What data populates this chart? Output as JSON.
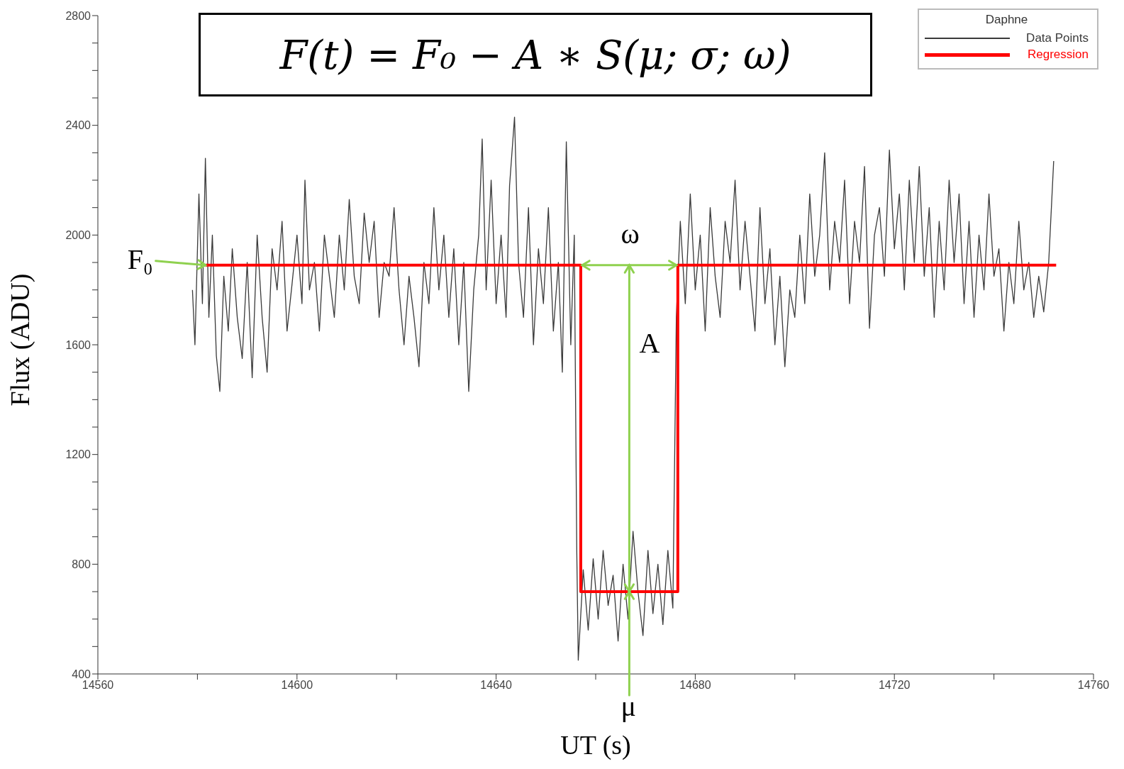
{
  "chart_data": {
    "type": "line",
    "xlabel": "UT (s)",
    "ylabel": "Flux (ADU)",
    "legend_title": "Daphne",
    "legend": "top right",
    "xlim": [
      14560,
      14760
    ],
    "ylim": [
      400,
      2800
    ],
    "xticks": [
      14560,
      {
        "value": 14580,
        "label": null
      },
      14600,
      {
        "value": 14620,
        "label": null
      },
      14640,
      {
        "value": 14660,
        "label": null
      },
      14680,
      {
        "value": 14700,
        "label": null
      },
      14720,
      {
        "value": 14740,
        "label": null
      },
      14760
    ],
    "yticks": [
      400,
      {
        "value": 500,
        "label": null
      },
      {
        "value": 600,
        "label": null
      },
      {
        "value": 700,
        "label": null
      },
      800,
      {
        "value": 900,
        "label": null
      },
      {
        "value": 1000,
        "label": null
      },
      {
        "value": 1100,
        "label": null
      },
      1200,
      {
        "value": 1300,
        "label": null
      },
      {
        "value": 1400,
        "label": null
      },
      {
        "value": 1500,
        "label": null
      },
      1600,
      {
        "value": 1700,
        "label": null
      },
      {
        "value": 1800,
        "label": null
      },
      {
        "value": 1900,
        "label": null
      },
      2000,
      {
        "value": 2100,
        "label": null
      },
      {
        "value": 2200,
        "label": null
      },
      {
        "value": 2300,
        "label": null
      },
      2400,
      {
        "value": 2500,
        "label": null
      },
      {
        "value": 2600,
        "label": null
      },
      {
        "value": 2700,
        "label": null
      },
      2800
    ],
    "series": [
      {
        "name": "Data Points",
        "color": "#3a3a3a",
        "x": [
          14579,
          14579.5,
          14580.3,
          14581,
          14581.6,
          14582.3,
          14583,
          14583.8,
          14584.5,
          14585.3,
          14586.2,
          14587,
          14588,
          14589,
          14590,
          14591,
          14592,
          14593,
          14594,
          14595,
          14596,
          14597,
          14598,
          14599,
          14600,
          14601,
          14601.6,
          14602.5,
          14603.5,
          14604.5,
          14605.5,
          14606.5,
          14607.5,
          14608.5,
          14609.5,
          14610.5,
          14611.5,
          14612.5,
          14613.5,
          14614.5,
          14615.5,
          14616.5,
          14617.5,
          14618.5,
          14619.5,
          14620.5,
          14621.5,
          14622.5,
          14623.5,
          14624.5,
          14625.5,
          14626.5,
          14627.5,
          14628.5,
          14629.5,
          14630.5,
          14631.5,
          14632.5,
          14633.5,
          14634.5,
          14635.5,
          14636.5,
          14637.2,
          14638,
          14639,
          14640,
          14641,
          14642,
          14642.7,
          14643.7,
          14644.5,
          14645.5,
          14646.5,
          14647.5,
          14648.5,
          14649.5,
          14650.5,
          14651.5,
          14652.5,
          14653.3,
          14654.1,
          14655,
          14655.7,
          14656.2,
          14656.5,
          14657.5,
          14658.5,
          14659.5,
          14660.5,
          14661.5,
          14662.5,
          14663.5,
          14664.5,
          14665.5,
          14666.5,
          14667.5,
          14668.5,
          14669.5,
          14670.5,
          14671.5,
          14672.5,
          14673.5,
          14674.5,
          14675.5,
          14676.2,
          14677,
          14678,
          14679,
          14680,
          14681,
          14682,
          14683,
          14684,
          14685,
          14686,
          14687,
          14688,
          14689,
          14690,
          14691,
          14692,
          14693,
          14694,
          14695,
          14696,
          14697,
          14698,
          14699,
          14700,
          14701,
          14702,
          14703,
          14704,
          14705,
          14706,
          14707,
          14708,
          14709,
          14710,
          14711,
          14712,
          14713,
          14714,
          14715,
          14716,
          14717,
          14718,
          14719,
          14720,
          14721,
          14722,
          14723,
          14724,
          14725,
          14726,
          14727,
          14728,
          14729,
          14730,
          14731,
          14732,
          14733,
          14734,
          14735,
          14736,
          14737,
          14738,
          14739,
          14740,
          14741,
          14742,
          14743,
          14744,
          14745,
          14746,
          14747,
          14748,
          14749,
          14750,
          14751,
          14752
        ],
        "values": [
          1800,
          1600,
          2150,
          1750,
          2280,
          1700,
          2000,
          1560,
          1430,
          1850,
          1650,
          1950,
          1700,
          1550,
          1900,
          1480,
          2000,
          1700,
          1500,
          1950,
          1800,
          2050,
          1650,
          1820,
          2000,
          1750,
          2200,
          1800,
          1900,
          1650,
          2000,
          1850,
          1700,
          2000,
          1800,
          2130,
          1850,
          1750,
          2080,
          1900,
          2050,
          1700,
          1900,
          1850,
          2100,
          1800,
          1600,
          1850,
          1700,
          1520,
          1900,
          1750,
          2100,
          1800,
          2000,
          1700,
          1950,
          1600,
          1900,
          1430,
          1800,
          2000,
          2350,
          1800,
          2200,
          1750,
          2000,
          1700,
          2180,
          2430,
          1900,
          1700,
          2100,
          1600,
          1950,
          1750,
          2100,
          1650,
          1900,
          1500,
          2340,
          1600,
          2000,
          850,
          450,
          780,
          560,
          820,
          600,
          850,
          650,
          760,
          520,
          800,
          600,
          920,
          700,
          540,
          850,
          620,
          800,
          580,
          850,
          640,
          1700,
          2050,
          1750,
          2150,
          1800,
          2000,
          1650,
          2100,
          1850,
          1700,
          2050,
          1900,
          2200,
          1800,
          2050,
          1850,
          1650,
          2100,
          1750,
          1950,
          1600,
          1850,
          1520,
          1800,
          1700,
          2000,
          1750,
          2150,
          1850,
          2000,
          2300,
          1800,
          2050,
          1900,
          2200,
          1750,
          2050,
          1900,
          2250,
          1660,
          2000,
          2100,
          1850,
          2310,
          1950,
          2150,
          1800,
          2200,
          1900,
          2250,
          1850,
          2100,
          1700,
          2050,
          1800,
          2200,
          1900,
          2150,
          1750,
          2050,
          1700,
          2000,
          1800,
          2150,
          1850,
          1950,
          1650,
          1900,
          1750,
          2050,
          1800,
          1900,
          1700,
          1850,
          1720,
          1900,
          2270
        ]
      },
      {
        "name": "Regression",
        "type": "step",
        "color": "#ff0000",
        "x": [
          14581.6,
          14657,
          14676.5,
          14752.5
        ],
        "values": [
          1890,
          700,
          1890,
          1890
        ]
      }
    ],
    "annotations": [
      "F(t) = F₀ − A ∗ S(μ; σ; ω)",
      {
        "text": "F₀",
        "x": 14581.6,
        "y": 1890
      },
      {
        "text": "ω",
        "x": 14657,
        "y": 1890
      },
      "A",
      {
        "text": "μ",
        "x": 14666.75,
        "y": 700
      }
    ]
  }
}
